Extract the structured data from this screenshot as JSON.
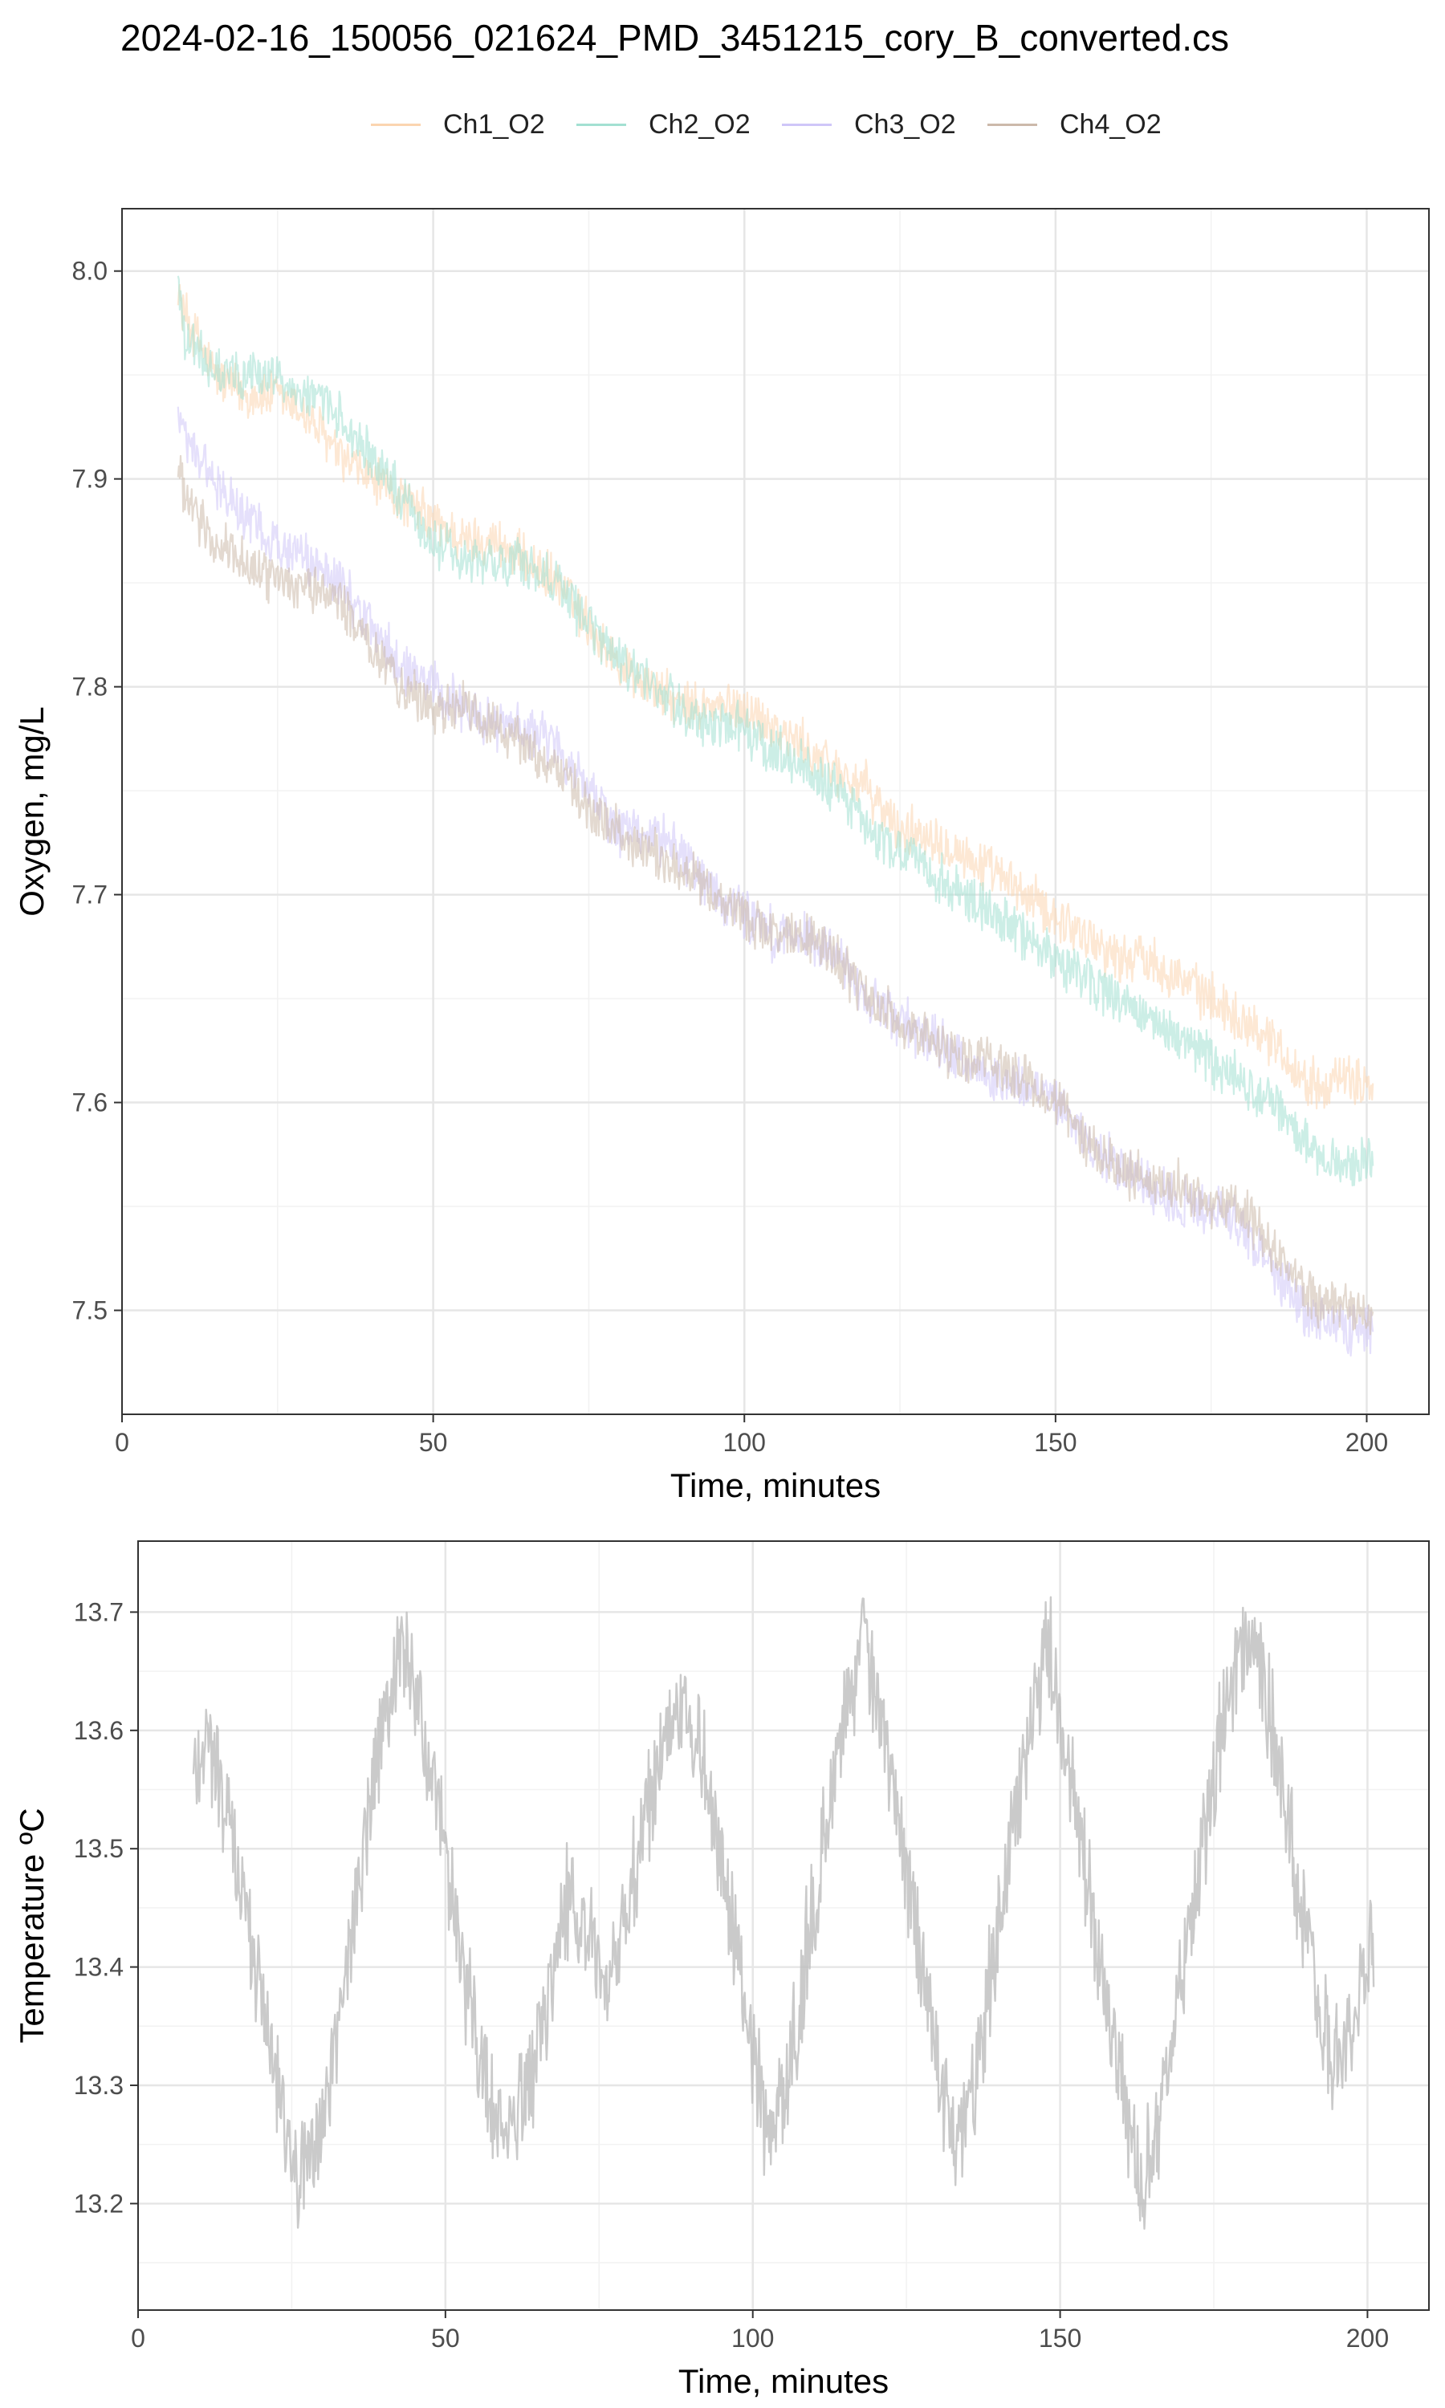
{
  "title": "2024-02-16_150056_021624_PMD_3451215_cory_B_converted.cs",
  "legend": [
    {
      "name": "Ch1_O2",
      "color": "#fbd5b0"
    },
    {
      "name": "Ch2_O2",
      "color": "#a3e0d2"
    },
    {
      "name": "Ch3_O2",
      "color": "#cfc6f8"
    },
    {
      "name": "Ch4_O2",
      "color": "#ccb9aa"
    }
  ],
  "chart_data": [
    {
      "type": "line",
      "title": "",
      "xlabel": "Time, minutes",
      "ylabel": "Oxygen, mg/L",
      "xlim": [
        0,
        210
      ],
      "ylim": [
        7.45,
        8.03
      ],
      "xticks": [
        0,
        50,
        100,
        150,
        200
      ],
      "yticks": [
        7.5,
        7.6,
        7.7,
        7.8,
        7.9,
        8.0
      ],
      "grid": true,
      "legend_position": "top",
      "x": [
        9,
        10,
        15,
        20,
        25,
        30,
        35,
        40,
        45,
        50,
        55,
        60,
        65,
        70,
        75,
        80,
        85,
        90,
        95,
        100,
        105,
        110,
        115,
        120,
        125,
        130,
        135,
        140,
        145,
        150,
        155,
        160,
        165,
        170,
        175,
        180,
        185,
        190,
        195,
        201
      ],
      "series": [
        {
          "name": "Ch1_O2",
          "color": "#fbd5b0",
          "values": [
            7.99,
            7.98,
            7.95,
            7.94,
            7.94,
            7.93,
            7.91,
            7.9,
            7.89,
            7.88,
            7.87,
            7.87,
            7.86,
            7.85,
            7.83,
            7.81,
            7.8,
            7.79,
            7.79,
            7.79,
            7.78,
            7.77,
            7.76,
            7.75,
            7.73,
            7.73,
            7.72,
            7.71,
            7.7,
            7.69,
            7.68,
            7.67,
            7.67,
            7.66,
            7.65,
            7.64,
            7.63,
            7.61,
            7.61,
            7.61
          ]
        },
        {
          "name": "Ch2_O2",
          "color": "#a3e0d2",
          "values": [
            8.0,
            7.97,
            7.95,
            7.95,
            7.95,
            7.94,
            7.93,
            7.91,
            7.89,
            7.87,
            7.86,
            7.86,
            7.86,
            7.85,
            7.83,
            7.81,
            7.8,
            7.79,
            7.78,
            7.78,
            7.77,
            7.76,
            7.75,
            7.73,
            7.72,
            7.71,
            7.7,
            7.69,
            7.68,
            7.67,
            7.66,
            7.65,
            7.64,
            7.63,
            7.62,
            7.61,
            7.6,
            7.58,
            7.57,
            7.57
          ]
        },
        {
          "name": "Ch3_O2",
          "color": "#cfc6f8",
          "values": [
            7.93,
            7.92,
            7.9,
            7.88,
            7.87,
            7.86,
            7.85,
            7.83,
            7.81,
            7.8,
            7.79,
            7.78,
            7.78,
            7.77,
            7.75,
            7.73,
            7.73,
            7.72,
            7.7,
            7.69,
            7.68,
            7.68,
            7.67,
            7.65,
            7.64,
            7.63,
            7.62,
            7.61,
            7.61,
            7.6,
            7.58,
            7.57,
            7.56,
            7.55,
            7.55,
            7.54,
            7.52,
            7.5,
            7.49,
            7.49
          ]
        },
        {
          "name": "Ch4_O2",
          "color": "#ccb9aa",
          "values": [
            7.91,
            7.89,
            7.87,
            7.86,
            7.85,
            7.85,
            7.84,
            7.82,
            7.8,
            7.79,
            7.79,
            7.78,
            7.77,
            7.76,
            7.74,
            7.73,
            7.72,
            7.71,
            7.7,
            7.69,
            7.68,
            7.68,
            7.67,
            7.65,
            7.64,
            7.63,
            7.62,
            7.62,
            7.61,
            7.6,
            7.58,
            7.57,
            7.56,
            7.56,
            7.55,
            7.55,
            7.53,
            7.51,
            7.5,
            7.5
          ]
        }
      ]
    },
    {
      "type": "line",
      "title": "",
      "xlabel": "Time, minutes",
      "ylabel": "Temperature ºC",
      "xlim": [
        0,
        210
      ],
      "ylim": [
        13.11,
        13.76
      ],
      "xticks": [
        0,
        50,
        100,
        150,
        200
      ],
      "yticks": [
        13.2,
        13.3,
        13.4,
        13.5,
        13.6,
        13.7
      ],
      "grid": true,
      "x": [
        9,
        11,
        14,
        17,
        20,
        23,
        26,
        29,
        32,
        35,
        38,
        41,
        43,
        46,
        49,
        52,
        55,
        58,
        61,
        64,
        67,
        70,
        73,
        76,
        79,
        82,
        85,
        88,
        91,
        94,
        97,
        100,
        103,
        106,
        109,
        112,
        115,
        118,
        121,
        124,
        127,
        130,
        133,
        136,
        139,
        142,
        145,
        148,
        151,
        154,
        157,
        160,
        163,
        166,
        169,
        172,
        175,
        178,
        181,
        184,
        187,
        190,
        193,
        196,
        199,
        201
      ],
      "series": [
        {
          "name": "",
          "color": "#bdbdbd",
          "values": [
            13.56,
            13.6,
            13.54,
            13.46,
            13.38,
            13.3,
            13.22,
            13.24,
            13.33,
            13.44,
            13.54,
            13.63,
            13.68,
            13.61,
            13.52,
            13.43,
            13.34,
            13.27,
            13.26,
            13.31,
            13.38,
            13.46,
            13.43,
            13.37,
            13.43,
            13.51,
            13.58,
            13.63,
            13.59,
            13.51,
            13.42,
            13.33,
            13.25,
            13.32,
            13.42,
            13.52,
            13.62,
            13.68,
            13.6,
            13.51,
            13.42,
            13.32,
            13.26,
            13.3,
            13.4,
            13.5,
            13.6,
            13.68,
            13.58,
            13.48,
            13.38,
            13.3,
            13.22,
            13.26,
            13.36,
            13.46,
            13.56,
            13.64,
            13.69,
            13.62,
            13.52,
            13.42,
            13.34,
            13.32,
            13.38,
            13.42
          ]
        }
      ]
    }
  ]
}
